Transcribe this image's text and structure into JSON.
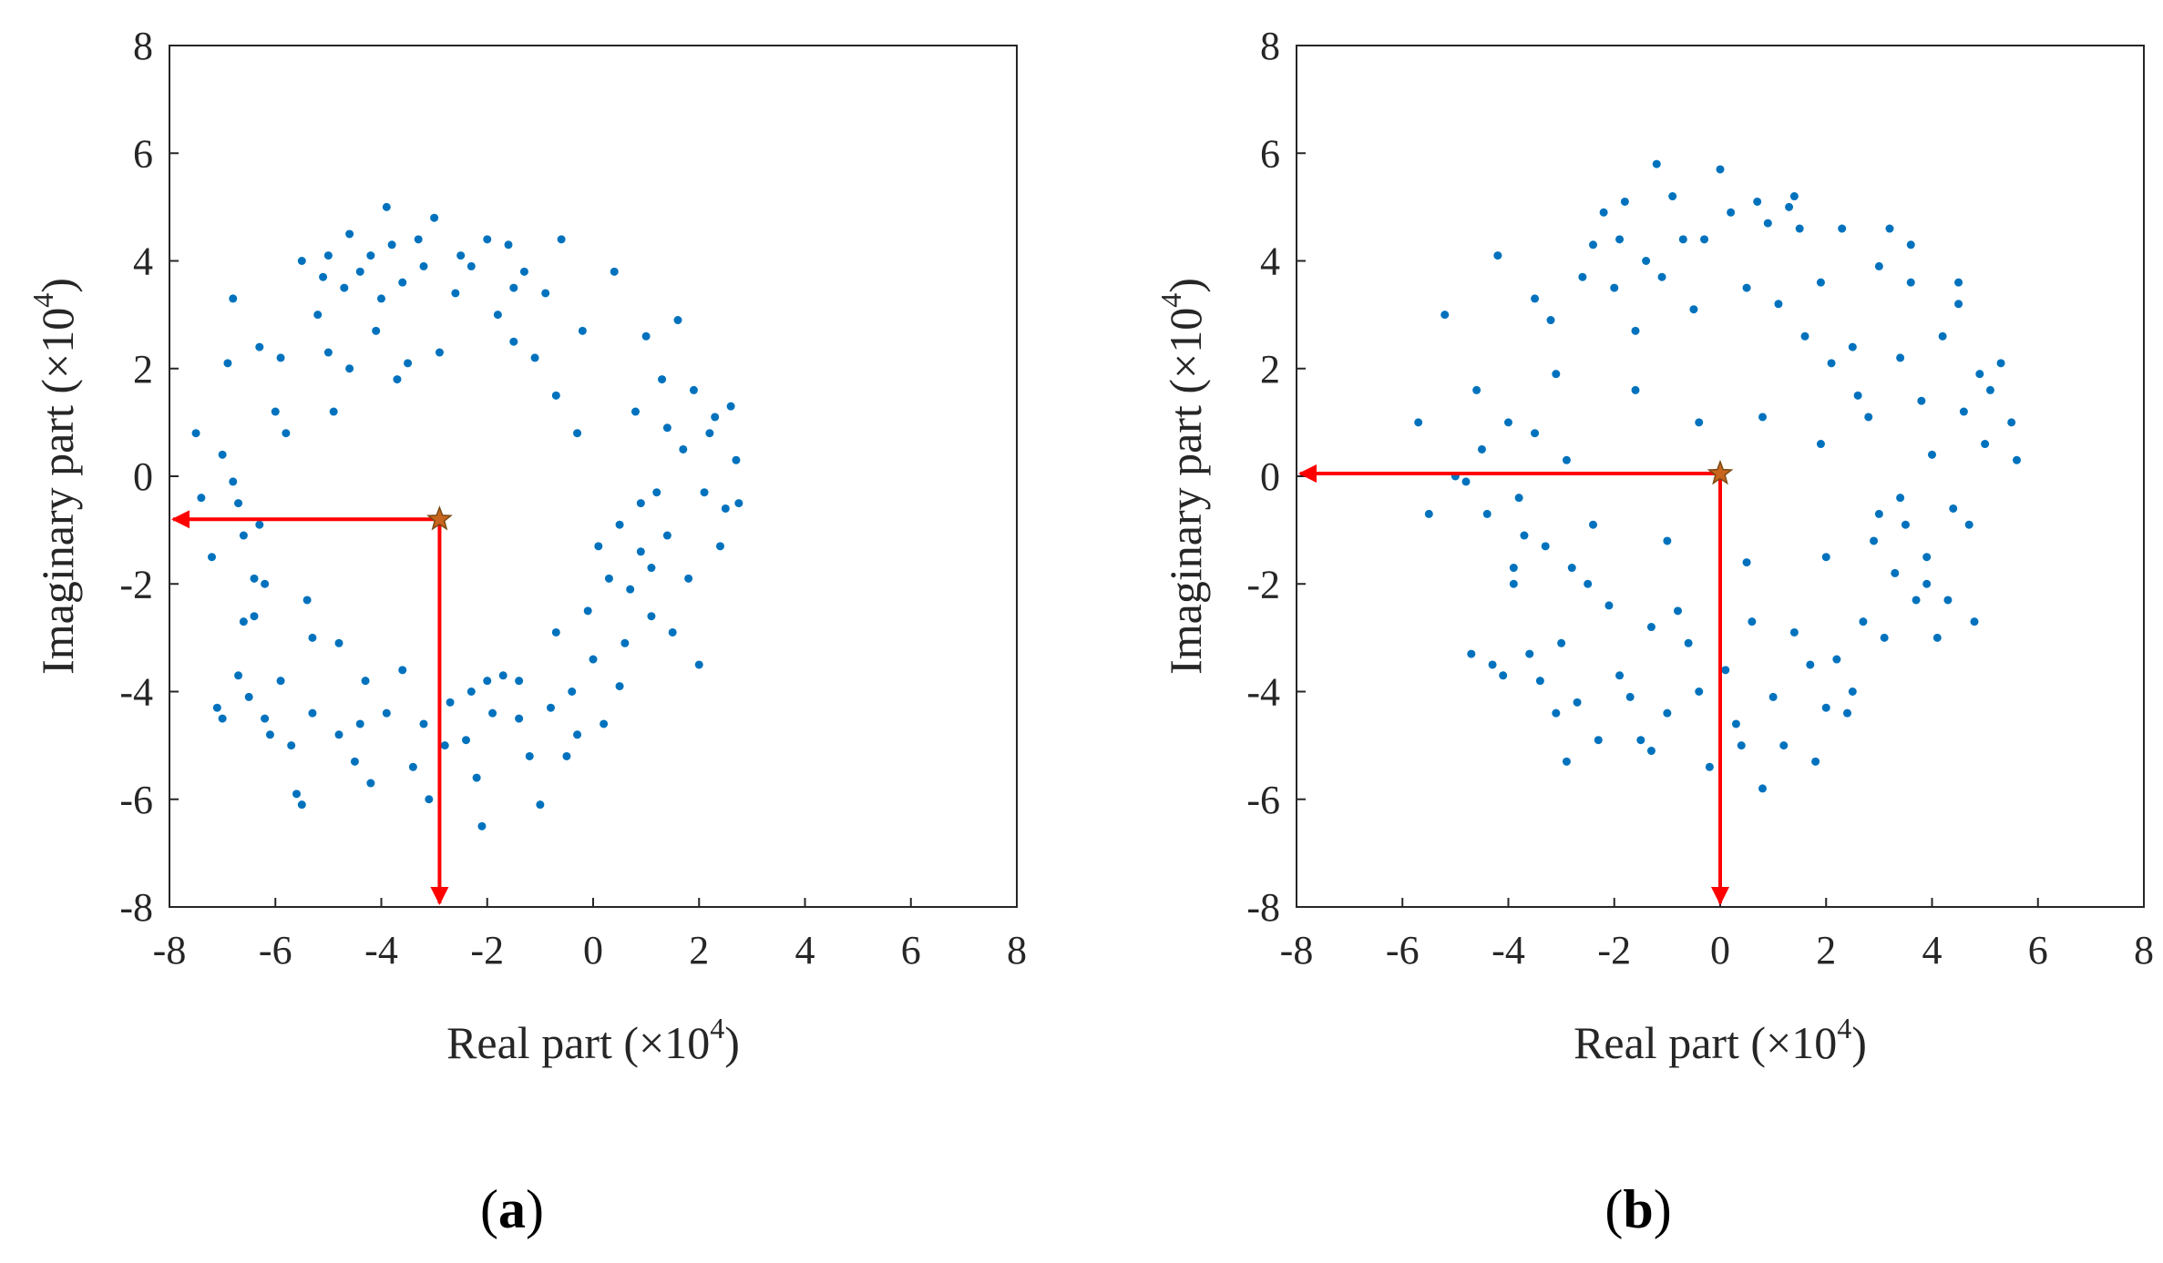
{
  "colors": {
    "points": "#0072BD",
    "arrow": "#FF0000",
    "star_fill": "#C8641E",
    "star_stroke": "#7A4A14",
    "axis": "#262626"
  },
  "chart_data": [
    {
      "id": "a",
      "type": "scatter",
      "caption": "a",
      "xlabel": "Real part (×10",
      "xlabel_exp": "4",
      "xlabel_close": ")",
      "ylabel": "Imaginary part (×10",
      "ylabel_exp": "4",
      "ylabel_close": ")",
      "xlim": [
        -8,
        8
      ],
      "ylim": [
        -8,
        8
      ],
      "xticks": [
        -8,
        -6,
        -4,
        -2,
        0,
        2,
        4,
        6,
        8
      ],
      "yticks": [
        -8,
        -6,
        -4,
        -2,
        0,
        2,
        4,
        6,
        8
      ],
      "grid": false,
      "center": {
        "x": -2.9,
        "y": -0.8
      },
      "series": [
        {
          "name": "points",
          "points": [
            [
              -7.5,
              0.8
            ],
            [
              -7.4,
              -0.4
            ],
            [
              -7.2,
              -1.5
            ],
            [
              -7.1,
              -4.3
            ],
            [
              -7.0,
              -4.5
            ],
            [
              -6.9,
              2.1
            ],
            [
              -6.8,
              3.3
            ],
            [
              -6.8,
              -0.1
            ],
            [
              -6.7,
              -0.5
            ],
            [
              -6.6,
              -1.1
            ],
            [
              -6.6,
              -2.7
            ],
            [
              -6.5,
              -4.1
            ],
            [
              -6.4,
              -1.9
            ],
            [
              -6.4,
              -2.6
            ],
            [
              -6.3,
              2.4
            ],
            [
              -6.3,
              -0.9
            ],
            [
              -6.2,
              -4.5
            ],
            [
              -6.2,
              -2.0
            ],
            [
              -6.1,
              -4.8
            ],
            [
              -6.0,
              1.2
            ],
            [
              -5.9,
              2.2
            ],
            [
              -5.9,
              -3.8
            ],
            [
              -5.8,
              0.8
            ],
            [
              -5.7,
              -5.0
            ],
            [
              -5.6,
              -5.9
            ],
            [
              -5.5,
              -6.1
            ],
            [
              -5.4,
              -2.3
            ],
            [
              -5.3,
              -4.4
            ],
            [
              -5.2,
              3.0
            ],
            [
              -5.1,
              3.7
            ],
            [
              -5.0,
              4.1
            ],
            [
              -4.9,
              1.2
            ],
            [
              -4.8,
              -3.1
            ],
            [
              -4.8,
              -4.8
            ],
            [
              -4.7,
              3.5
            ],
            [
              -4.6,
              4.5
            ],
            [
              -4.6,
              2.0
            ],
            [
              -4.5,
              -5.3
            ],
            [
              -4.4,
              3.8
            ],
            [
              -4.3,
              -3.8
            ],
            [
              -4.2,
              -5.7
            ],
            [
              -4.1,
              2.7
            ],
            [
              -4.0,
              3.3
            ],
            [
              -3.9,
              5.0
            ],
            [
              -3.9,
              -4.4
            ],
            [
              -3.8,
              4.3
            ],
            [
              -3.7,
              1.8
            ],
            [
              -3.6,
              3.6
            ],
            [
              -3.5,
              2.1
            ],
            [
              -3.4,
              -5.4
            ],
            [
              -3.3,
              4.4
            ],
            [
              -3.2,
              3.9
            ],
            [
              -3.1,
              -6.0
            ],
            [
              -3.0,
              4.8
            ],
            [
              -2.9,
              2.3
            ],
            [
              -2.7,
              -4.2
            ],
            [
              -2.6,
              3.4
            ],
            [
              -2.5,
              4.1
            ],
            [
              -2.4,
              -4.9
            ],
            [
              -2.3,
              3.9
            ],
            [
              -2.2,
              -5.6
            ],
            [
              -2.1,
              -6.5
            ],
            [
              -2.0,
              4.4
            ],
            [
              -1.9,
              -4.4
            ],
            [
              -1.8,
              3.0
            ],
            [
              -1.7,
              -3.7
            ],
            [
              -1.6,
              4.3
            ],
            [
              -1.5,
              2.5
            ],
            [
              -1.4,
              -4.5
            ],
            [
              -1.3,
              3.8
            ],
            [
              -1.2,
              -5.2
            ],
            [
              -1.1,
              2.2
            ],
            [
              -1.0,
              -6.1
            ],
            [
              -0.9,
              3.4
            ],
            [
              -0.8,
              -4.3
            ],
            [
              -0.7,
              1.5
            ],
            [
              -0.6,
              4.4
            ],
            [
              -0.5,
              -5.2
            ],
            [
              -0.4,
              -4.0
            ],
            [
              -0.3,
              0.8
            ],
            [
              -0.2,
              2.7
            ],
            [
              -0.1,
              -2.5
            ],
            [
              0.0,
              -3.4
            ],
            [
              0.2,
              -4.6
            ],
            [
              0.3,
              -1.9
            ],
            [
              0.4,
              3.8
            ],
            [
              0.5,
              -0.9
            ],
            [
              0.6,
              -3.1
            ],
            [
              0.7,
              -2.1
            ],
            [
              0.8,
              1.2
            ],
            [
              0.9,
              -1.4
            ],
            [
              1.0,
              2.6
            ],
            [
              1.1,
              -2.6
            ],
            [
              1.2,
              -0.3
            ],
            [
              1.3,
              1.8
            ],
            [
              1.4,
              -1.1
            ],
            [
              1.5,
              -2.9
            ],
            [
              1.6,
              2.9
            ],
            [
              1.7,
              0.5
            ],
            [
              1.8,
              -1.9
            ],
            [
              1.9,
              1.6
            ],
            [
              2.0,
              -3.5
            ],
            [
              2.1,
              -0.3
            ],
            [
              2.2,
              0.8
            ],
            [
              2.4,
              -1.3
            ],
            [
              2.5,
              -0.6
            ],
            [
              2.6,
              1.3
            ],
            [
              2.7,
              0.3
            ],
            [
              2.75,
              -0.5
            ],
            [
              -7.0,
              0.4
            ],
            [
              -5.5,
              4.0
            ],
            [
              -5.0,
              2.3
            ],
            [
              -4.2,
              4.1
            ],
            [
              -3.6,
              -3.6
            ],
            [
              -2.8,
              -5.0
            ],
            [
              -2.0,
              -3.8
            ],
            [
              -1.5,
              3.5
            ],
            [
              -0.7,
              -2.9
            ],
            [
              0.1,
              -1.3
            ],
            [
              0.9,
              -0.5
            ],
            [
              1.4,
              0.9
            ],
            [
              2.3,
              1.1
            ],
            [
              -6.7,
              -3.7
            ],
            [
              -5.3,
              -3.0
            ],
            [
              -4.4,
              -4.6
            ],
            [
              -3.2,
              -4.6
            ],
            [
              -2.3,
              -4.0
            ],
            [
              -1.4,
              -3.8
            ],
            [
              -0.3,
              -4.8
            ],
            [
              0.5,
              -3.9
            ],
            [
              1.1,
              -1.7
            ]
          ]
        }
      ]
    },
    {
      "id": "b",
      "type": "scatter",
      "caption": "b",
      "xlabel": "Real part (×10",
      "xlabel_exp": "4",
      "xlabel_close": ")",
      "ylabel": "Imaginary part (×10",
      "ylabel_exp": "4",
      "ylabel_close": ")",
      "xlim": [
        -8,
        8
      ],
      "ylim": [
        -8,
        8
      ],
      "xticks": [
        -8,
        -6,
        -4,
        -2,
        0,
        2,
        4,
        6,
        8
      ],
      "yticks": [
        -8,
        -6,
        -4,
        -2,
        0,
        2,
        4,
        6,
        8
      ],
      "grid": false,
      "center": {
        "x": 0,
        "y": 0.05
      },
      "series": [
        {
          "name": "points",
          "points": [
            [
              -5.7,
              1.0
            ],
            [
              -5.5,
              -0.7
            ],
            [
              -5.2,
              3.0
            ],
            [
              -5.0,
              0.0
            ],
            [
              -4.8,
              -0.1
            ],
            [
              -4.6,
              1.6
            ],
            [
              -4.5,
              0.5
            ],
            [
              -4.4,
              -0.7
            ],
            [
              -4.3,
              -3.5
            ],
            [
              -4.2,
              4.1
            ],
            [
              -4.1,
              -3.7
            ],
            [
              -4.0,
              1.0
            ],
            [
              -3.9,
              -2.0
            ],
            [
              -3.8,
              -0.4
            ],
            [
              -3.7,
              -1.1
            ],
            [
              -3.6,
              -3.3
            ],
            [
              -3.5,
              0.8
            ],
            [
              -3.4,
              -3.8
            ],
            [
              -3.3,
              -1.3
            ],
            [
              -3.2,
              2.9
            ],
            [
              -3.1,
              1.9
            ],
            [
              -3.0,
              -3.1
            ],
            [
              -2.9,
              -5.3
            ],
            [
              -2.8,
              -1.7
            ],
            [
              -2.7,
              -4.2
            ],
            [
              -2.6,
              3.7
            ],
            [
              -2.5,
              -2.0
            ],
            [
              -2.4,
              4.3
            ],
            [
              -2.3,
              -4.9
            ],
            [
              -2.2,
              4.9
            ],
            [
              -2.1,
              -2.4
            ],
            [
              -2.0,
              3.5
            ],
            [
              -1.9,
              -3.7
            ],
            [
              -1.8,
              5.1
            ],
            [
              -1.7,
              -4.1
            ],
            [
              -1.6,
              2.7
            ],
            [
              -1.5,
              -4.9
            ],
            [
              -1.4,
              4.0
            ],
            [
              -1.3,
              -2.8
            ],
            [
              -1.2,
              5.8
            ],
            [
              -1.1,
              3.7
            ],
            [
              -1.0,
              -4.4
            ],
            [
              -0.9,
              5.2
            ],
            [
              -0.8,
              -2.5
            ],
            [
              -0.7,
              4.4
            ],
            [
              -0.6,
              -3.1
            ],
            [
              -0.5,
              3.1
            ],
            [
              -0.4,
              -4.0
            ],
            [
              -0.3,
              4.4
            ],
            [
              -0.2,
              -5.4
            ],
            [
              0.0,
              5.7
            ],
            [
              0.1,
              -3.6
            ],
            [
              0.2,
              4.9
            ],
            [
              0.3,
              -4.6
            ],
            [
              0.5,
              3.5
            ],
            [
              0.6,
              -2.7
            ],
            [
              0.7,
              5.1
            ],
            [
              0.8,
              -5.8
            ],
            [
              0.9,
              4.7
            ],
            [
              1.0,
              -4.1
            ],
            [
              1.1,
              3.2
            ],
            [
              1.2,
              -5.0
            ],
            [
              1.3,
              5.0
            ],
            [
              1.4,
              -2.9
            ],
            [
              1.5,
              4.6
            ],
            [
              1.6,
              2.6
            ],
            [
              1.7,
              -3.5
            ],
            [
              1.8,
              -5.3
            ],
            [
              1.9,
              3.6
            ],
            [
              2.0,
              -4.3
            ],
            [
              2.1,
              2.1
            ],
            [
              2.2,
              -3.4
            ],
            [
              2.3,
              4.6
            ],
            [
              2.4,
              -4.4
            ],
            [
              2.5,
              2.4
            ],
            [
              2.6,
              1.5
            ],
            [
              2.7,
              -2.7
            ],
            [
              2.8,
              1.1
            ],
            [
              2.9,
              -1.2
            ],
            [
              3.0,
              3.9
            ],
            [
              3.1,
              -3.0
            ],
            [
              3.2,
              4.6
            ],
            [
              3.3,
              -1.8
            ],
            [
              3.4,
              2.2
            ],
            [
              3.5,
              -0.9
            ],
            [
              3.6,
              3.6
            ],
            [
              3.7,
              -2.3
            ],
            [
              3.8,
              1.4
            ],
            [
              3.9,
              -1.5
            ],
            [
              4.0,
              0.4
            ],
            [
              4.1,
              -3.0
            ],
            [
              4.2,
              2.6
            ],
            [
              4.3,
              -2.3
            ],
            [
              4.4,
              -0.6
            ],
            [
              4.5,
              3.6
            ],
            [
              4.6,
              1.2
            ],
            [
              4.7,
              -0.9
            ],
            [
              4.8,
              -2.7
            ],
            [
              4.9,
              1.9
            ],
            [
              5.0,
              0.6
            ],
            [
              5.1,
              1.6
            ],
            [
              5.3,
              2.1
            ],
            [
              5.5,
              1.0
            ],
            [
              5.6,
              0.3
            ],
            [
              -3.9,
              -1.7
            ],
            [
              -2.9,
              0.3
            ],
            [
              -1.6,
              1.6
            ],
            [
              -0.4,
              1.0
            ],
            [
              0.8,
              1.1
            ],
            [
              1.9,
              0.6
            ],
            [
              3.0,
              -0.7
            ],
            [
              3.4,
              -0.4
            ],
            [
              2.0,
              -1.5
            ],
            [
              0.5,
              -1.6
            ],
            [
              -1.0,
              -1.2
            ],
            [
              -2.4,
              -0.9
            ],
            [
              -4.7,
              -3.3
            ],
            [
              -3.1,
              -4.4
            ],
            [
              -1.3,
              -5.1
            ],
            [
              0.4,
              -5.0
            ],
            [
              2.5,
              -4.0
            ],
            [
              3.9,
              -2.0
            ],
            [
              4.5,
              3.2
            ],
            [
              3.6,
              4.3
            ],
            [
              1.4,
              5.2
            ],
            [
              -1.9,
              4.4
            ],
            [
              -3.5,
              3.3
            ]
          ]
        }
      ]
    }
  ]
}
